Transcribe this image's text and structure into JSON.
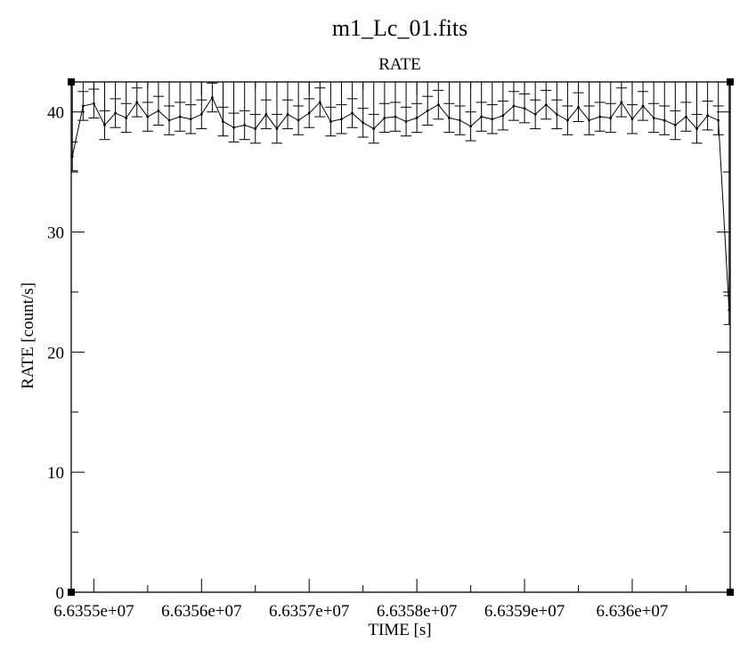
{
  "chart_data": {
    "type": "line",
    "title": "m1_Lc_01.fits",
    "subtitle": "RATE",
    "xlabel": "TIME [s]",
    "ylabel": "RATE [count/s]",
    "xlim": [
      66354790,
      66360910
    ],
    "ylim": [
      0,
      42.5
    ],
    "x_ticks": [
      66355000,
      66356000,
      66357000,
      66358000,
      66359000,
      66360000
    ],
    "x_tick_labels": [
      "6.6355e+07",
      "6.6356e+07",
      "6.6357e+07",
      "6.6358e+07",
      "6.6359e+07",
      "6.636e+07"
    ],
    "y_ticks": [
      0,
      10,
      20,
      30,
      40
    ],
    "y_tick_labels": [
      "0",
      "10",
      "20",
      "30",
      "40"
    ],
    "grid": false,
    "legend": "none",
    "bin_width_s": 100,
    "error_bar_halfwidth": 1.2,
    "series": [
      {
        "x": [
          66354800,
          66354900,
          66355000,
          66355100,
          66355200,
          66355300,
          66355400,
          66355500,
          66355600,
          66355700,
          66355800,
          66355900,
          66356000,
          66356100,
          66356200,
          66356300,
          66356400,
          66356500,
          66356600,
          66356700,
          66356800,
          66356900,
          66357000,
          66357100,
          66357200,
          66357300,
          66357400,
          66357500,
          66357600,
          66357700,
          66357800,
          66357900,
          66358000,
          66358100,
          66358200,
          66358300,
          66358400,
          66358500,
          66358600,
          66358700,
          66358800,
          66358900,
          66359000,
          66359100,
          66359200,
          66359300,
          66359400,
          66359500,
          66359600,
          66359700,
          66359800,
          66359900,
          66360000,
          66360100,
          66360200,
          66360300,
          66360400,
          66360500,
          66360600,
          66360700,
          66360800,
          66360900
        ],
        "y": [
          36.3,
          40.5,
          40.7,
          38.9,
          39.9,
          39.5,
          40.8,
          39.6,
          40.1,
          39.3,
          39.6,
          39.4,
          39.8,
          41.2,
          39.2,
          38.7,
          38.9,
          38.6,
          39.8,
          38.6,
          39.8,
          39.3,
          39.9,
          40.8,
          39.2,
          39.4,
          39.9,
          39.1,
          38.6,
          39.5,
          39.6,
          39.2,
          39.5,
          40.1,
          40.6,
          39.5,
          39.3,
          38.8,
          39.6,
          39.4,
          39.7,
          40.5,
          40.3,
          39.8,
          40.6,
          39.8,
          39.3,
          40.4,
          39.3,
          39.6,
          39.5,
          40.8,
          39.4,
          40.5,
          39.5,
          39.3,
          38.9,
          39.6,
          38.6,
          39.7,
          39.3,
          23.5
        ]
      }
    ]
  }
}
